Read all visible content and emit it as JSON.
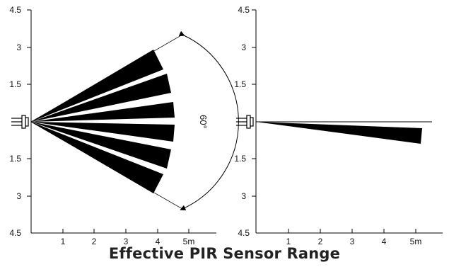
{
  "caption": "Effective PIR Sensor Range",
  "angle_label": "60°",
  "y_ticks": [
    "4.5",
    "3",
    "1.5",
    "",
    "1.5",
    "3",
    "4.5"
  ],
  "x_ticks": [
    "1",
    "2",
    "3",
    "4",
    "5m"
  ],
  "colors": {
    "ink": "#000000",
    "background": "#ffffff"
  },
  "icons": {
    "sensor": "pir-sensor-icon"
  }
}
